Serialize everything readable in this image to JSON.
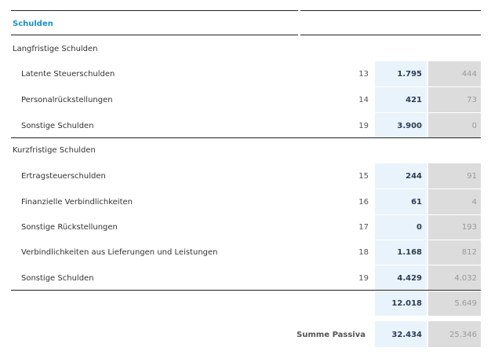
{
  "section_title": "Schulden",
  "groups": [
    {
      "label": "Langfristige Schulden",
      "rows": [
        {
          "label": "Latente Steuerschulden",
          "note": "13",
          "current": "1.795",
          "previous": "444"
        },
        {
          "label": "Personalrückstellungen",
          "note": "14",
          "current": "421",
          "previous": "73"
        },
        {
          "label": "Sonstige Schulden",
          "note": "19",
          "current": "3.900",
          "previous": "0"
        }
      ]
    },
    {
      "label": "Kurzfristige Schulden",
      "rows": [
        {
          "label": "Ertragsteuerschulden",
          "note": "15",
          "current": "244",
          "previous": "91"
        },
        {
          "label": "Finanzielle Verbindlichkeiten",
          "note": "16",
          "current": "61",
          "previous": "4"
        },
        {
          "label": "Sonstige Rückstellungen",
          "note": "17",
          "current": "0",
          "previous": "193"
        },
        {
          "label": "Verbindlichkeiten aus Lieferungen und Leistungen",
          "note": "18",
          "current": "1.168",
          "previous": "812"
        },
        {
          "label": "Sonstige Schulden",
          "note": "19",
          "current": "4.429",
          "previous": "4.032"
        }
      ]
    }
  ],
  "subtotal": {
    "current": "12.018",
    "previous": "5.649"
  },
  "total": {
    "label": "Summe Passiva",
    "current": "32.434",
    "previous": "25.346"
  }
}
